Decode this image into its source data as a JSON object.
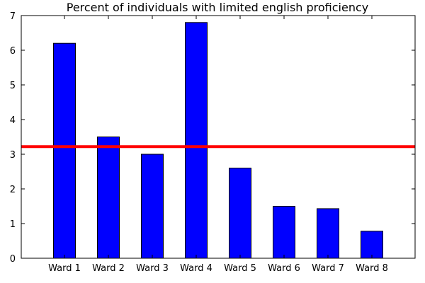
{
  "chart_data": {
    "type": "bar",
    "title": "Percent of individuals with limited english proficiency",
    "xlabel": "",
    "ylabel": "",
    "categories": [
      "Ward 1",
      "Ward 2",
      "Ward 3",
      "Ward 4",
      "Ward 5",
      "Ward 6",
      "Ward 7",
      "Ward 8"
    ],
    "values": [
      6.2,
      3.5,
      3.0,
      6.8,
      2.6,
      1.5,
      1.43,
      0.78
    ],
    "ylim": [
      0,
      7
    ],
    "yticks": [
      "0",
      "1",
      "2",
      "3",
      "4",
      "5",
      "6",
      "7"
    ],
    "reference_line": {
      "value": 3.22,
      "color": "#ff0000"
    },
    "bar_color": "#0000ff",
    "grid": false,
    "legend": "none"
  }
}
